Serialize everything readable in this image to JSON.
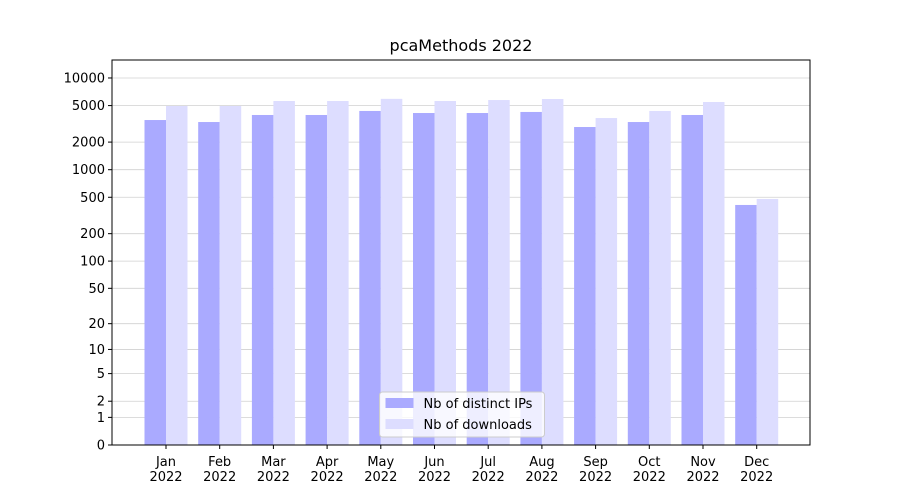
{
  "chart_data": {
    "type": "bar",
    "title": "pcaMethods 2022",
    "categories": [
      "Jan 2022",
      "Feb 2022",
      "Mar 2022",
      "Apr 2022",
      "May 2022",
      "Jun 2022",
      "Jul 2022",
      "Aug 2022",
      "Sep 2022",
      "Oct 2022",
      "Nov 2022",
      "Dec 2022"
    ],
    "series": [
      {
        "name": "Nb of distinct IPs",
        "color": "#aaaaff",
        "values": [
          3480,
          3310,
          3950,
          3950,
          4370,
          4150,
          4150,
          4260,
          2920,
          3310,
          3950,
          412
        ]
      },
      {
        "name": "Nb of downloads",
        "color": "#ddddff",
        "values": [
          4950,
          4950,
          5610,
          5610,
          5920,
          5610,
          5750,
          5900,
          3660,
          4370,
          5470,
          479
        ]
      }
    ],
    "yscale": "log1p",
    "ylim": [
      0,
      15700
    ],
    "yticks": [
      0,
      1,
      2,
      5,
      10,
      20,
      50,
      100,
      200,
      500,
      1000,
      2000,
      5000,
      10000
    ],
    "grid": true,
    "legend": "lower center"
  }
}
